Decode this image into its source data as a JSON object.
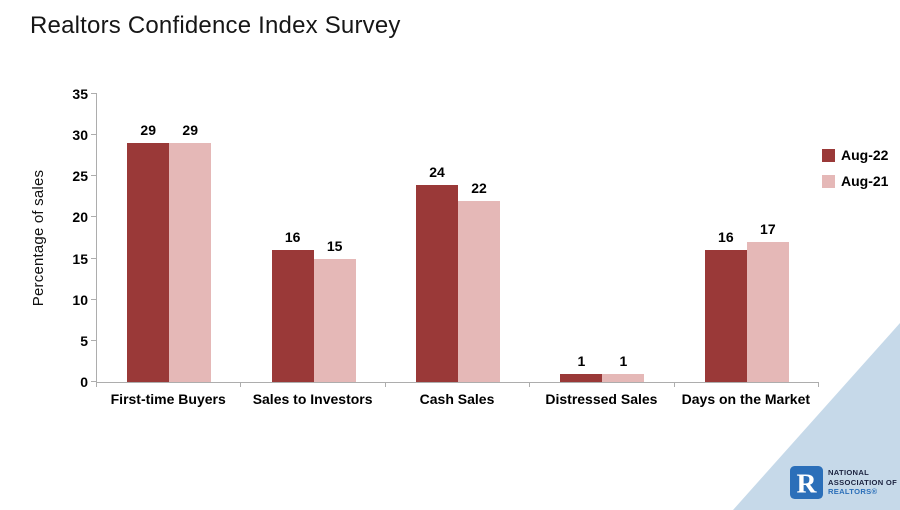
{
  "title": "Realtors Confidence Index Survey",
  "chart_data": {
    "type": "bar",
    "title": "Realtors Confidence Index Survey",
    "categories": [
      "First-time Buyers",
      "Sales to Investors",
      "Cash Sales",
      "Distressed Sales",
      "Days on the Market"
    ],
    "series": [
      {
        "name": "Aug-22",
        "color": "#9A3938",
        "values": [
          29,
          16,
          24,
          1,
          16
        ]
      },
      {
        "name": "Aug-21",
        "color": "#E5B8B7",
        "values": [
          29,
          15,
          22,
          1,
          17
        ]
      }
    ],
    "xlabel": "",
    "ylabel": "Percentage of  sales",
    "ylim": [
      0,
      35
    ],
    "ytick_step": 5,
    "grid": false,
    "legend_position": "right",
    "value_labels": true
  },
  "logo": {
    "line1": "NATIONAL",
    "line2": "ASSOCIATION OF",
    "line3": "REALTORS®",
    "mark_letter": "R",
    "mark_color": "#2B6FB9",
    "realtors_color": "#2B6FB9",
    "triangle_color": "#C6D9E9"
  },
  "colors": {
    "axis": "#ADADAD",
    "text": "#000000",
    "title": "#161616",
    "background": "#FFFFFF"
  }
}
